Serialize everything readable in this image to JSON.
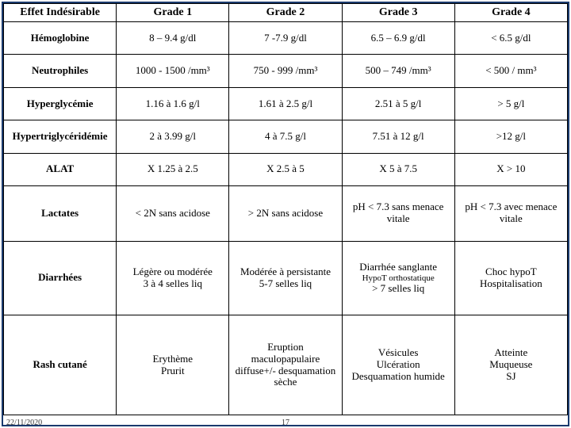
{
  "header": [
    "Effet Indésirable",
    "Grade 1",
    "Grade 2",
    "Grade 3",
    "Grade 4"
  ],
  "rows": [
    {
      "label": "Hémoglobine",
      "cells": [
        "8 – 9.4 g/dl",
        "7 -7.9 g/dl",
        "6.5 – 6.9 g/dl",
        "< 6.5 g/dl"
      ]
    },
    {
      "label": "Neutrophiles",
      "cells": [
        "1000 - 1500 /mm³",
        "750 - 999 /mm³",
        "500 – 749 /mm³",
        "< 500 / mm³"
      ]
    },
    {
      "label": "Hyperglycémie",
      "cells": [
        "1.16 à 1.6 g/l",
        "1.61 à 2.5 g/l",
        "2.51 à 5 g/l",
        "> 5 g/l"
      ]
    },
    {
      "label": "Hypertriglycéridémie",
      "cells": [
        "2 à 3.99 g/l",
        "4 à 7.5 g/l",
        "7.51 à 12 g/l",
        ">12 g/l"
      ]
    },
    {
      "label": "ALAT",
      "cells": [
        "X 1.25 à 2.5",
        "X 2.5 à 5",
        "X 5 à 7.5",
        "X > 10"
      ]
    },
    {
      "label": "Lactates",
      "cells": [
        "< 2N sans acidose",
        "> 2N sans acidose",
        "pH < 7.3 sans menace vitale",
        "pH < 7.3 avec menace vitale"
      ]
    },
    {
      "label": "Diarrhées",
      "cells": [
        "Légère ou modérée\n3 à 4 selles liq",
        "Modérée à persistante\n5-7 selles liq",
        "Diarrhée sanglante\nHypoT orthostatique\n> 7 selles liq",
        "Choc hypoT\nHospitalisation"
      ]
    },
    {
      "label": "Rash cutané",
      "cells": [
        "Erythème\nPrurit",
        "Eruption maculopapulaire diffuse+/- desquamation sèche",
        "Vésicules\nUlcération\nDesquamation humide",
        "Atteinte\nMuqueuse\nSJ"
      ]
    }
  ],
  "footer_date": "22/11/2020",
  "page_number": "17",
  "style": {
    "type": "table",
    "border_color": "#000000",
    "border_width": 1.5,
    "frame_color": "#1a3a6e",
    "frame_width": 2,
    "background_color": "#ffffff",
    "header_fontsize": 14,
    "cell_fontsize": 13,
    "font_family": "Times New Roman",
    "columns": 5,
    "column_widths_pct": [
      20,
      20,
      20,
      20,
      20
    ],
    "rows_count": 9
  }
}
